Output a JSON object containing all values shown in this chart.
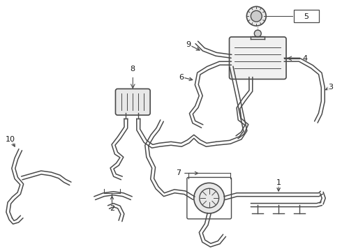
{
  "bg_color": "#ffffff",
  "line_color": "#4a4a4a",
  "text_color": "#1a1a1a",
  "lw_main": 1.1,
  "lw_thin": 0.8,
  "figsize": [
    4.9,
    3.6
  ],
  "dpi": 100
}
